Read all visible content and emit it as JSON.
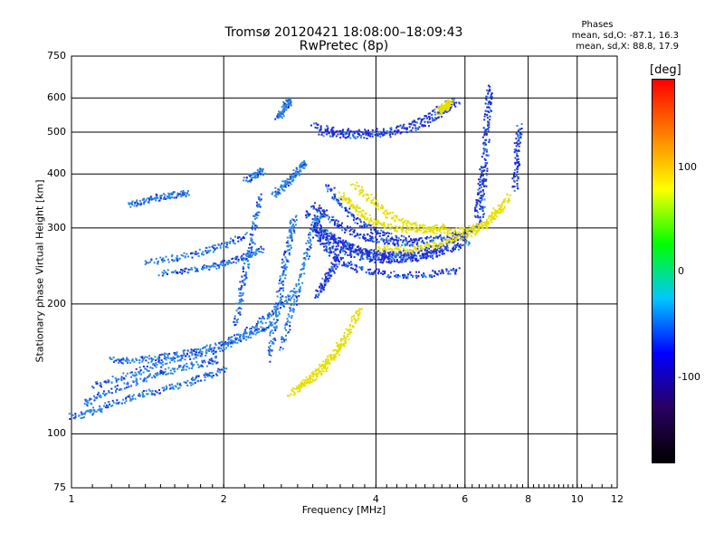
{
  "chart_data": {
    "type": "scatter",
    "title": "Tromsø 20120421 18:08:00–18:09:43",
    "subtitle": "RwPretec (8p)",
    "phases_info": {
      "heading": "Phases",
      "line1": "mean, sd,O: -87.1, 16.3",
      "line2": "mean, sd,X:  88.8, 17.9"
    },
    "xlabel": "Frequency [MHz]",
    "ylabel": "Stationary phase Virtual Height [km]",
    "x_scale": "log",
    "y_scale": "log",
    "xlim": [
      1,
      12
    ],
    "ylim": [
      75,
      750
    ],
    "x_ticks": [
      "1",
      "2",
      "4",
      "6",
      "8",
      "10",
      "12"
    ],
    "y_ticks": [
      "75",
      "100",
      "200",
      "300",
      "400",
      "500",
      "600",
      "750"
    ],
    "grid": true,
    "colorbar": {
      "label": "[deg]",
      "range": [
        -180,
        180
      ],
      "ticks": [
        "100",
        "0",
        "-100"
      ]
    },
    "series": [
      {
        "traces": [
          {
            "x": [
              1.0,
              1.1,
              1.2,
              1.35,
              1.5,
              1.7,
              1.85,
              2.0
            ],
            "y": [
              110,
              113,
              118,
              123,
              127,
              132,
              137,
              142
            ]
          },
          {
            "x": [
              1.05,
              1.15,
              1.3,
              1.45,
              1.6,
              1.8,
              1.95
            ],
            "y": [
              118,
              124,
              131,
              137,
              142,
              146,
              150
            ]
          },
          {
            "x": [
              1.1,
              1.25,
              1.4,
              1.55,
              1.75,
              1.95,
              2.1,
              2.3,
              2.5
            ],
            "y": [
              130,
              136,
              142,
              148,
              153,
              158,
              165,
              172,
              182
            ]
          },
          {
            "x": [
              1.2,
              1.3,
              1.45,
              1.6,
              1.8,
              2.0,
              2.2,
              2.4,
              2.6,
              2.8
            ],
            "y": [
              150,
              148,
              150,
              153,
              157,
              163,
              172,
              185,
              200,
              220
            ]
          },
          {
            "x": [
              1.5,
              1.7,
              1.9,
              2.05,
              2.2,
              2.4
            ],
            "y": [
              236,
              240,
              246,
              252,
              258,
              270
            ]
          },
          {
            "x": [
              1.4,
              1.6,
              1.8,
              2.0,
              2.2
            ],
            "y": [
              250,
              257,
              265,
              275,
              290
            ]
          },
          {
            "x": [
              1.3,
              1.4,
              1.5,
              1.6,
              1.7
            ],
            "y": [
              340,
              350,
              355,
              360,
              362
            ]
          },
          {
            "x": [
              2.1,
              2.15,
              2.2,
              2.25,
              2.3,
              2.35
            ],
            "y": [
              180,
              210,
              240,
              270,
              310,
              360
            ]
          },
          {
            "x": [
              2.45,
              2.5,
              2.55,
              2.6,
              2.65,
              2.7,
              2.75
            ],
            "y": [
              150,
              175,
              200,
              230,
              260,
              290,
              320
            ]
          },
          {
            "x": [
              2.6,
              2.7,
              2.8,
              2.9,
              3.0,
              3.1
            ],
            "y": [
              160,
              190,
              220,
              260,
              300,
              330
            ]
          },
          {
            "x": [
              2.55,
              2.6,
              2.65,
              2.7
            ],
            "y": [
              540,
              560,
              580,
              595
            ]
          },
          {
            "x": [
              2.5,
              2.6,
              2.7,
              2.8,
              2.9
            ],
            "y": [
              360,
              375,
              390,
              410,
              430
            ]
          },
          {
            "x": [
              2.2,
              2.3,
              2.4
            ],
            "y": [
              390,
              400,
              410
            ]
          }
        ]
      },
      {
        "traces": [
          {
            "x": [
              3.0,
              3.2,
              3.5,
              3.8,
              4.1,
              4.5,
              5.0,
              5.5,
              6.0,
              6.4
            ],
            "y": [
              305,
              290,
              275,
              265,
              262,
              262,
              268,
              275,
              290,
              310
            ]
          },
          {
            "x": [
              3.1,
              3.3,
              3.6,
              3.9,
              4.2,
              4.6,
              5.1,
              5.6,
              6.1
            ],
            "y": [
              285,
              272,
              262,
              255,
              253,
              255,
              260,
              268,
              282
            ]
          },
          {
            "x": [
              3.0,
              3.2,
              3.4,
              3.7,
              4.0,
              4.4,
              4.9
            ],
            "y": [
              340,
              320,
              303,
              290,
              282,
              278,
              278
            ]
          },
          {
            "x": [
              2.9,
              3.1,
              3.3,
              3.6,
              3.9,
              4.3,
              4.8,
              5.3
            ],
            "y": [
              330,
              300,
              282,
              270,
              262,
              258,
              258,
              262
            ]
          },
          {
            "x": [
              3.2,
              3.4,
              3.7,
              4.0,
              4.4,
              4.9,
              5.4,
              6.0
            ],
            "y": [
              380,
              340,
              310,
              295,
              285,
              282,
              285,
              295
            ]
          },
          {
            "x": [
              3.0,
              3.2,
              3.4,
              3.7,
              4.1,
              4.6,
              5.2,
              5.8
            ],
            "y": [
              300,
              268,
              252,
              242,
              236,
              234,
              236,
              240
            ]
          },
          {
            "x": [
              3.05,
              3.15,
              3.25,
              3.35
            ],
            "y": [
              210,
              225,
              240,
              255
            ]
          },
          {
            "x": [
              3.0,
              3.3,
              3.7,
              4.2,
              4.8,
              5.3,
              5.7
            ],
            "y": [
              520,
              505,
              500,
              505,
              530,
              565,
              600
            ]
          },
          {
            "x": [
              3.1,
              3.4,
              3.8,
              4.3,
              4.9,
              5.4,
              5.8
            ],
            "y": [
              500,
              495,
              493,
              498,
              520,
              555,
              590
            ]
          },
          {
            "x": [
              6.45,
              6.5,
              6.55,
              6.6,
              6.65,
              6.7
            ],
            "y": [
              320,
              380,
              440,
              510,
              580,
              640
            ]
          },
          {
            "x": [
              6.3,
              6.4,
              6.5
            ],
            "y": [
              320,
              360,
              420
            ]
          },
          {
            "x": [
              7.5,
              7.55,
              7.6,
              7.65
            ],
            "y": [
              370,
              420,
              470,
              520
            ]
          }
        ]
      },
      {
        "traces": [
          {
            "x": [
              2.7,
              2.9,
              3.1,
              3.3,
              3.5
            ],
            "y": [
              125,
              132,
              140,
              152,
              170
            ]
          },
          {
            "x": [
              2.8,
              3.0,
              3.2,
              3.4,
              3.6,
              3.7
            ],
            "y": [
              128,
              137,
              148,
              163,
              182,
              195
            ]
          },
          {
            "x": [
              3.4,
              3.6,
              3.8,
              4.1,
              4.5,
              5.0,
              5.5
            ],
            "y": [
              360,
              340,
              320,
              305,
              298,
              298,
              305
            ]
          },
          {
            "x": [
              3.6,
              3.9,
              4.2,
              4.6,
              5.1,
              5.6,
              6.2,
              6.7,
              7.0
            ],
            "y": [
              380,
              350,
              325,
              308,
              298,
              295,
              300,
              315,
              340
            ]
          },
          {
            "x": [
              4.0,
              4.5,
              5.0,
              5.5,
              6.0,
              6.5,
              7.0,
              7.3
            ],
            "y": [
              270,
              268,
              272,
              280,
              290,
              305,
              330,
              360
            ]
          },
          {
            "x": [
              5.3,
              5.4,
              5.5,
              5.6
            ],
            "y": [
              560,
              570,
              580,
              590
            ]
          }
        ]
      }
    ]
  },
  "colors": {
    "o_mode_dark": "#1f2bd6",
    "o_mode_light": "#2a88e0",
    "x_mode": "#e6e000",
    "colorbar_stops": [
      "#000000",
      "#2a0060",
      "#0000ff",
      "#00c8ff",
      "#00ff00",
      "#ffff00",
      "#ff8000",
      "#ff0000"
    ]
  }
}
